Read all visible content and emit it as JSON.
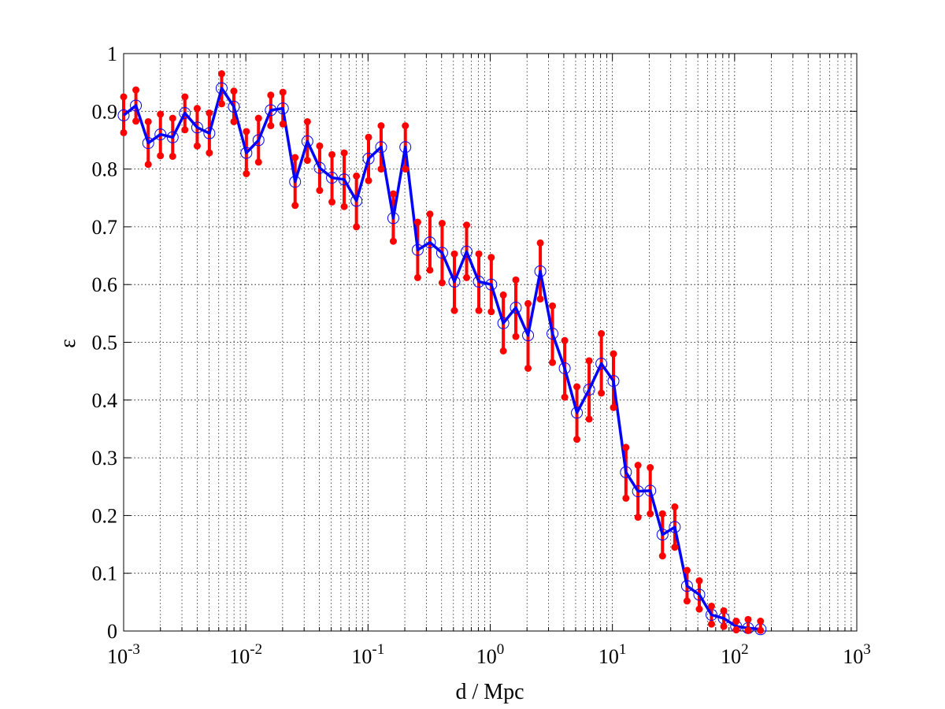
{
  "chart_data": {
    "type": "line",
    "title": "",
    "xlabel": "d / Mpc",
    "ylabel": "ε",
    "xscale": "log",
    "xlim": [
      0.001,
      1000
    ],
    "ylim": [
      0,
      1
    ],
    "grid": true,
    "x_tick_labels": [
      {
        "base": "10",
        "exp": "-3"
      },
      {
        "base": "10",
        "exp": "-2"
      },
      {
        "base": "10",
        "exp": "-1"
      },
      {
        "base": "10",
        "exp": "0"
      },
      {
        "base": "10",
        "exp": "1"
      },
      {
        "base": "10",
        "exp": "2"
      },
      {
        "base": "10",
        "exp": "3"
      }
    ],
    "y_tick_labels": [
      "0",
      "0.1",
      "0.2",
      "0.3",
      "0.4",
      "0.5",
      "0.6",
      "0.7",
      "0.8",
      "0.9",
      "1"
    ],
    "series": [
      {
        "line_color": "#0000ff",
        "marker": "open-circle",
        "error_bar_color": "#ff0000",
        "x": [
          0.001,
          0.00126,
          0.00159,
          0.002,
          0.00252,
          0.00317,
          0.004,
          0.00503,
          0.00634,
          0.00798,
          0.0101,
          0.0127,
          0.016,
          0.0201,
          0.0253,
          0.0319,
          0.0402,
          0.0507,
          0.0638,
          0.0804,
          0.101,
          0.128,
          0.161,
          0.202,
          0.255,
          0.321,
          0.404,
          0.509,
          0.641,
          0.807,
          1.02,
          1.28,
          1.62,
          2.04,
          2.57,
          3.23,
          4.07,
          5.12,
          6.45,
          8.12,
          10.2,
          12.9,
          16.2,
          20.4,
          25.7,
          32.4,
          40.8,
          51.4,
          64.7,
          81.5,
          103,
          129,
          163
        ],
        "y": [
          0.893,
          0.91,
          0.845,
          0.86,
          0.855,
          0.897,
          0.872,
          0.862,
          0.94,
          0.908,
          0.828,
          0.85,
          0.902,
          0.905,
          0.778,
          0.848,
          0.802,
          0.785,
          0.782,
          0.745,
          0.818,
          0.838,
          0.715,
          0.838,
          0.66,
          0.673,
          0.655,
          0.605,
          0.657,
          0.605,
          0.6,
          0.533,
          0.56,
          0.512,
          0.623,
          0.515,
          0.455,
          0.378,
          0.418,
          0.463,
          0.433,
          0.275,
          0.242,
          0.243,
          0.167,
          0.18,
          0.078,
          0.063,
          0.028,
          0.022,
          0.008,
          0.005,
          0.003
        ],
        "err_upper": [
          0.925,
          0.937,
          0.882,
          0.895,
          0.888,
          0.925,
          0.905,
          0.897,
          0.965,
          0.935,
          0.865,
          0.888,
          0.928,
          0.933,
          0.82,
          0.882,
          0.84,
          0.825,
          0.828,
          0.788,
          0.855,
          0.875,
          0.757,
          0.875,
          0.708,
          0.722,
          0.706,
          0.653,
          0.703,
          0.653,
          0.647,
          0.582,
          0.608,
          0.567,
          0.672,
          0.563,
          0.503,
          0.423,
          0.468,
          0.515,
          0.48,
          0.318,
          0.287,
          0.283,
          0.203,
          0.215,
          0.105,
          0.087,
          0.043,
          0.035,
          0.017,
          0.02,
          0.017
        ],
        "err_lower": [
          0.863,
          0.883,
          0.808,
          0.823,
          0.822,
          0.868,
          0.84,
          0.828,
          0.913,
          0.882,
          0.792,
          0.812,
          0.875,
          0.878,
          0.737,
          0.815,
          0.763,
          0.743,
          0.735,
          0.7,
          0.78,
          0.8,
          0.675,
          0.8,
          0.612,
          0.625,
          0.603,
          0.555,
          0.612,
          0.555,
          0.553,
          0.485,
          0.51,
          0.455,
          0.575,
          0.465,
          0.405,
          0.332,
          0.367,
          0.412,
          0.387,
          0.23,
          0.197,
          0.203,
          0.13,
          0.145,
          0.052,
          0.038,
          0.012,
          0.008,
          0.002,
          0.001,
          0.001
        ]
      }
    ]
  }
}
